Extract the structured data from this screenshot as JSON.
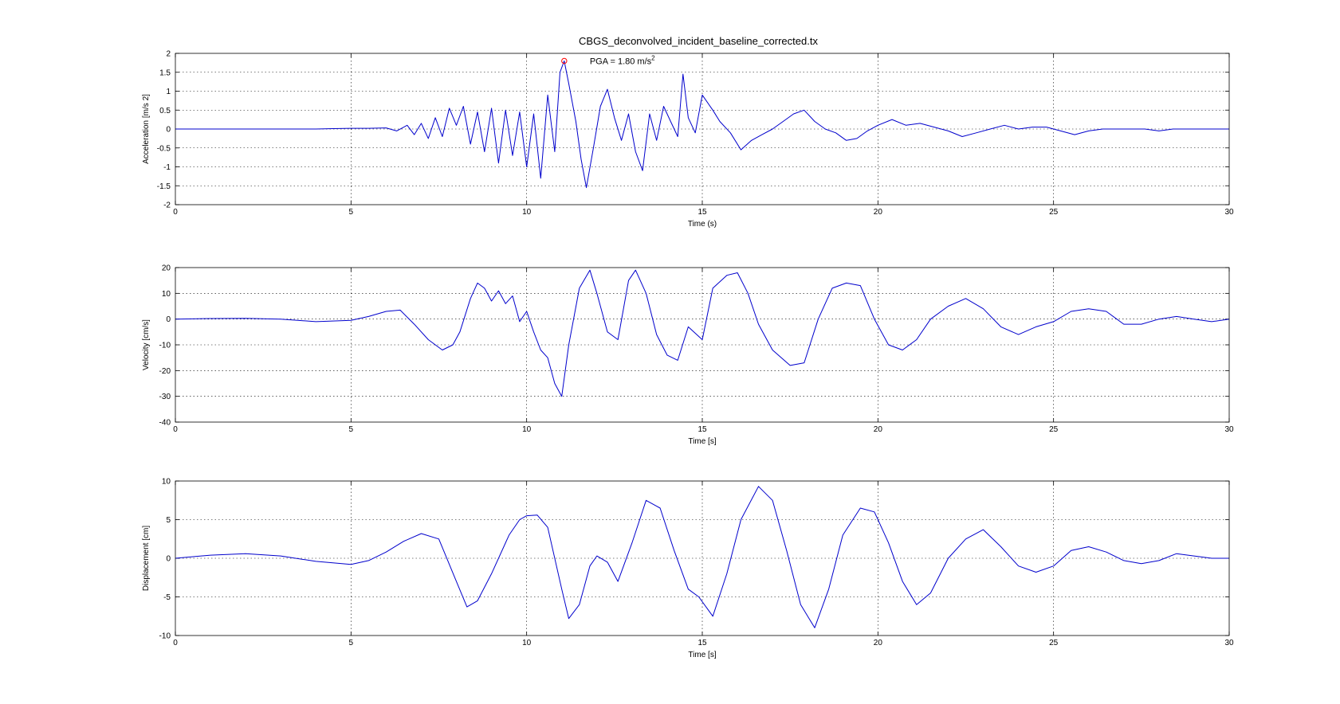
{
  "figure": {
    "title": "CBGS_deconvolved_incident_baseline_corrected.tx",
    "trace_color": "#0000cc",
    "marker_color": "#ff0000"
  },
  "chart_data": [
    {
      "type": "line",
      "name_in_figure": "acceleration",
      "xlabel": "Time (s)",
      "ylabel": "Acceleration [m/s 2]",
      "xlim": [
        0,
        30
      ],
      "ylim": [
        -2,
        2
      ],
      "xticks": [
        0,
        5,
        10,
        15,
        20,
        25,
        30
      ],
      "yticks": [
        -2,
        -1.5,
        -1,
        -0.5,
        0,
        0.5,
        1,
        1.5,
        2
      ],
      "grid": true,
      "annotation": {
        "text": "PGA = 1.80 m/s",
        "superscript": "2",
        "x": 11.07,
        "y": 1.8
      },
      "x": [
        0,
        4,
        4.5,
        5,
        5.5,
        6,
        6.3,
        6.6,
        6.8,
        7,
        7.2,
        7.4,
        7.6,
        7.8,
        8,
        8.2,
        8.4,
        8.6,
        8.8,
        9,
        9.2,
        9.4,
        9.6,
        9.8,
        10,
        10.2,
        10.4,
        10.6,
        10.8,
        10.95,
        11.07,
        11.2,
        11.4,
        11.55,
        11.7,
        11.9,
        12.1,
        12.3,
        12.5,
        12.7,
        12.9,
        13.1,
        13.3,
        13.5,
        13.7,
        13.9,
        14.1,
        14.3,
        14.45,
        14.6,
        14.8,
        15,
        15.3,
        15.5,
        15.8,
        16.1,
        16.4,
        16.7,
        17,
        17.3,
        17.6,
        17.9,
        18.2,
        18.5,
        18.8,
        19.1,
        19.4,
        19.7,
        20,
        20.4,
        20.8,
        21.2,
        21.6,
        22,
        22.4,
        22.8,
        23.2,
        23.6,
        24,
        24.4,
        24.8,
        25.2,
        25.6,
        26,
        26.4,
        26.8,
        27.2,
        27.6,
        28,
        28.4,
        28.8,
        29.2,
        29.6,
        30
      ],
      "y": [
        0,
        0,
        0.01,
        0.02,
        0.02,
        0.03,
        -0.05,
        0.1,
        -0.15,
        0.15,
        -0.25,
        0.3,
        -0.2,
        0.55,
        0.1,
        0.6,
        -0.4,
        0.45,
        -0.6,
        0.55,
        -0.9,
        0.5,
        -0.7,
        0.45,
        -1.0,
        0.4,
        -1.3,
        0.9,
        -0.6,
        1.5,
        1.8,
        1.2,
        0.2,
        -0.8,
        -1.55,
        -0.5,
        0.6,
        1.05,
        0.3,
        -0.3,
        0.4,
        -0.6,
        -1.1,
        0.4,
        -0.3,
        0.6,
        0.2,
        -0.2,
        1.45,
        0.3,
        -0.1,
        0.9,
        0.5,
        0.2,
        -0.1,
        -0.55,
        -0.3,
        -0.15,
        0.0,
        0.2,
        0.4,
        0.5,
        0.2,
        0.0,
        -0.1,
        -0.3,
        -0.25,
        -0.05,
        0.1,
        0.25,
        0.1,
        0.15,
        0.05,
        -0.05,
        -0.2,
        -0.1,
        0.0,
        0.1,
        0.0,
        0.05,
        0.05,
        -0.05,
        -0.15,
        -0.05,
        0.0,
        0.0,
        0.0,
        0.0,
        -0.05,
        0.0,
        0.0,
        0.0,
        0.0,
        0.0
      ]
    },
    {
      "type": "line",
      "name_in_figure": "velocity",
      "xlabel": "Time [s]",
      "ylabel": "Velocity [cm/s]",
      "xlim": [
        0,
        30
      ],
      "ylim": [
        -40,
        20
      ],
      "xticks": [
        0,
        5,
        10,
        15,
        20,
        25,
        30
      ],
      "yticks": [
        -40,
        -30,
        -20,
        -10,
        0,
        10,
        20
      ],
      "grid": true,
      "x": [
        0,
        1,
        2,
        3,
        4,
        5,
        5.5,
        6,
        6.4,
        6.8,
        7.2,
        7.6,
        7.9,
        8.1,
        8.4,
        8.6,
        8.8,
        9.0,
        9.2,
        9.4,
        9.6,
        9.8,
        10.0,
        10.2,
        10.4,
        10.6,
        10.8,
        11.0,
        11.2,
        11.5,
        11.8,
        12.0,
        12.3,
        12.6,
        12.9,
        13.1,
        13.4,
        13.7,
        14.0,
        14.3,
        14.6,
        15.0,
        15.3,
        15.7,
        16.0,
        16.3,
        16.6,
        17.0,
        17.5,
        17.9,
        18.3,
        18.7,
        19.1,
        19.5,
        19.9,
        20.3,
        20.7,
        21.1,
        21.5,
        22.0,
        22.5,
        23.0,
        23.5,
        24.0,
        24.5,
        25.0,
        25.5,
        26.0,
        26.5,
        27.0,
        27.5,
        28.0,
        28.5,
        29.0,
        29.5,
        30
      ],
      "y": [
        0,
        0.2,
        0.3,
        0,
        -1,
        -0.5,
        1,
        3,
        3.5,
        -2,
        -8,
        -12,
        -10,
        -5,
        8,
        14,
        12,
        7,
        11,
        6,
        9,
        -1,
        3,
        -5,
        -12,
        -15,
        -25,
        -30,
        -10,
        12,
        19,
        10,
        -5,
        -8,
        15,
        19,
        10,
        -6,
        -14,
        -16,
        -3,
        -8,
        12,
        17,
        18,
        10,
        -2,
        -12,
        -18,
        -17,
        0,
        12,
        14,
        13,
        0,
        -10,
        -12,
        -8,
        0,
        5,
        8,
        4,
        -3,
        -6,
        -3,
        -1,
        3,
        4,
        3,
        -2,
        -2,
        0,
        1,
        0,
        -1,
        0
      ]
    },
    {
      "type": "line",
      "name_in_figure": "displacement",
      "xlabel": "Time [s]",
      "ylabel": "Displacement [cm]",
      "xlim": [
        0,
        30
      ],
      "ylim": [
        -10,
        10
      ],
      "xticks": [
        0,
        5,
        10,
        15,
        20,
        25,
        30
      ],
      "yticks": [
        -10,
        -5,
        0,
        5,
        10
      ],
      "grid": true,
      "x": [
        0,
        1,
        2,
        3,
        4,
        5,
        5.5,
        6,
        6.5,
        7,
        7.5,
        8,
        8.3,
        8.6,
        9,
        9.5,
        9.8,
        10,
        10.3,
        10.6,
        11,
        11.2,
        11.5,
        11.8,
        12,
        12.3,
        12.6,
        13,
        13.4,
        13.8,
        14.2,
        14.6,
        14.9,
        15.3,
        15.7,
        16.1,
        16.6,
        17,
        17.4,
        17.8,
        18.2,
        18.6,
        19,
        19.5,
        19.9,
        20.3,
        20.7,
        21.1,
        21.5,
        22,
        22.5,
        23,
        23.5,
        24,
        24.5,
        25,
        25.5,
        26,
        26.5,
        27,
        27.5,
        28,
        28.5,
        29,
        29.5,
        30
      ],
      "y": [
        0,
        0.4,
        0.6,
        0.3,
        -0.4,
        -0.8,
        -0.3,
        0.8,
        2.2,
        3.2,
        2.5,
        -3,
        -6.3,
        -5.5,
        -2,
        3,
        5,
        5.5,
        5.6,
        4,
        -4,
        -7.8,
        -6,
        -1,
        0.3,
        -0.5,
        -3,
        2,
        7.5,
        6.5,
        1,
        -4,
        -5,
        -7.5,
        -2,
        5,
        9.3,
        7.5,
        1,
        -6,
        -9,
        -4,
        3,
        6.5,
        6,
        2,
        -3,
        -6,
        -4.5,
        0,
        2.5,
        3.7,
        1.5,
        -1,
        -1.8,
        -1,
        1,
        1.5,
        0.8,
        -0.3,
        -0.7,
        -0.3,
        0.6,
        0.3,
        0,
        0
      ]
    }
  ]
}
